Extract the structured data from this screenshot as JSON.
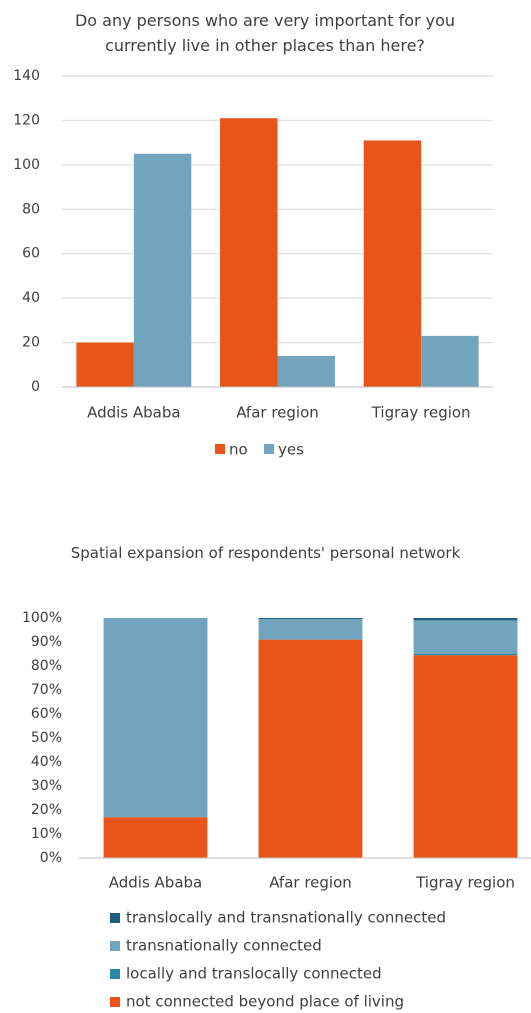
{
  "chart_data": [
    {
      "type": "bar",
      "title": "Do any persons who are very important for you currently live in other places than here?",
      "categories": [
        "Addis Ababa",
        "Afar region",
        "Tigray region"
      ],
      "series": [
        {
          "name": "no",
          "color": "#e8541a",
          "values": [
            20,
            121,
            111
          ]
        },
        {
          "name": "yes",
          "color": "#72a5bd",
          "values": [
            105,
            14,
            23
          ]
        }
      ],
      "ylim": [
        0,
        140
      ],
      "yticks": [
        0,
        20,
        40,
        60,
        80,
        100,
        120,
        140
      ],
      "grid": true,
      "legend": "bottom"
    },
    {
      "type": "stacked_bar",
      "title": "Spatial expansion of respondents' personal network",
      "categories": [
        "Addis Ababa",
        "Afar region",
        "Tigray region"
      ],
      "series": [
        {
          "name": "not connected beyond place of living",
          "color": "#e8541a",
          "values": [
            17,
            91,
            84.5
          ]
        },
        {
          "name": "locally and translocally connected",
          "color": "#2a8aa6",
          "values": [
            0,
            0,
            0.5
          ]
        },
        {
          "name": "transnationally connected",
          "color": "#72a5bd",
          "values": [
            83,
            8.5,
            14
          ]
        },
        {
          "name": "translocally and transnationally connected",
          "color": "#1f5f80",
          "values": [
            0,
            0.5,
            1
          ]
        }
      ],
      "ylim": [
        0,
        100
      ],
      "yticks": [
        {
          "value": 0,
          "label": "0%"
        },
        {
          "value": 10,
          "label": "10%"
        },
        {
          "value": 20,
          "label": "20%"
        },
        {
          "value": 30,
          "label": "30%"
        },
        {
          "value": 40,
          "label": "40%"
        },
        {
          "value": 50,
          "label": "50%"
        },
        {
          "value": 60,
          "label": "60%"
        },
        {
          "value": 70,
          "label": "70%"
        },
        {
          "value": 80,
          "label": "80%"
        },
        {
          "value": 90,
          "label": "90%"
        },
        {
          "value": 100,
          "label": "100%"
        }
      ],
      "grid": false,
      "legend": "bottom"
    }
  ]
}
